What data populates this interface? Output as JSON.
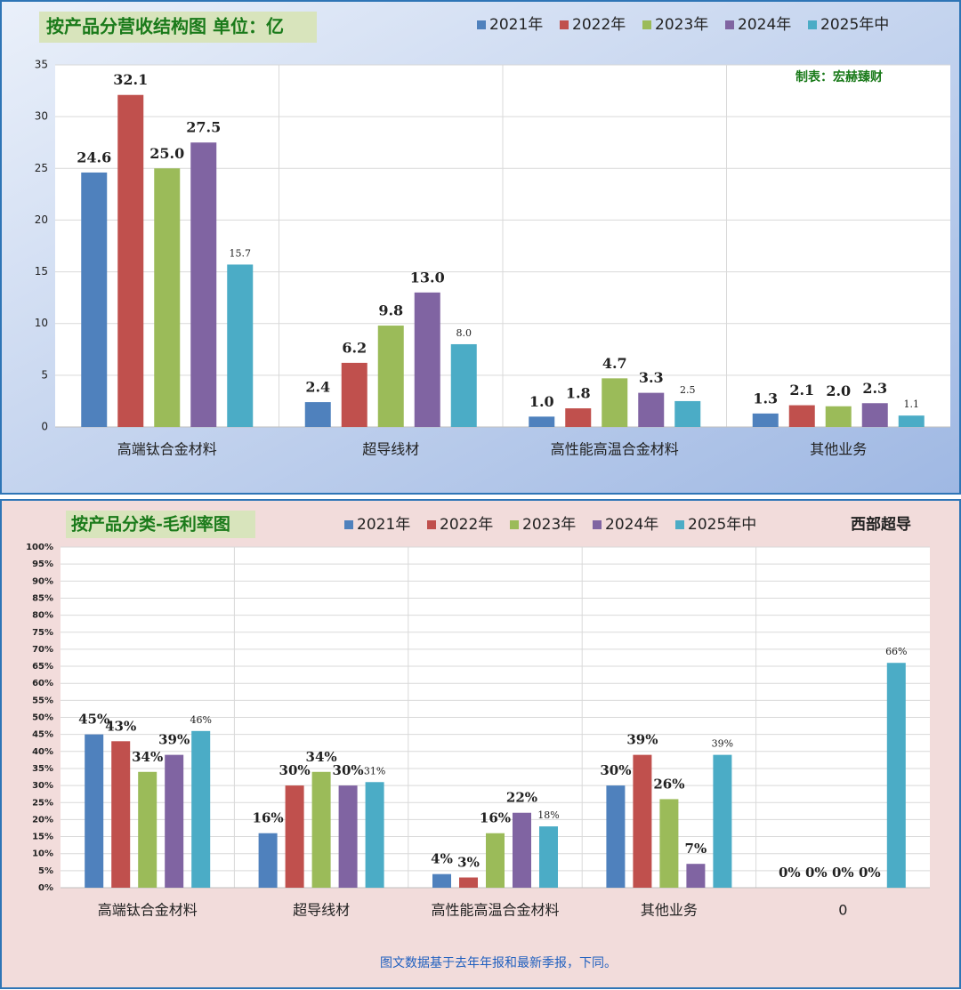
{
  "chart_data": [
    {
      "type": "bar",
      "title": "按产品分营收结构图 单位：亿",
      "annotation": "制表：宏赫臻财",
      "categories": [
        "高端钛合金材料",
        "超导线材",
        "高性能高温合金材料",
        "其他业务"
      ],
      "series": [
        {
          "name": "2021年",
          "color": "#4f81bd",
          "values": [
            24.6,
            2.4,
            1.0,
            1.3
          ],
          "value_labels": [
            "24.6",
            "2.4",
            "1.0",
            "1.3"
          ]
        },
        {
          "name": "2022年",
          "color": "#c0504d",
          "values": [
            32.1,
            6.2,
            1.8,
            2.1
          ],
          "value_labels": [
            "32.1",
            "6.2",
            "1.8",
            "2.1"
          ]
        },
        {
          "name": "2023年",
          "color": "#9bbb59",
          "values": [
            25.0,
            9.8,
            4.7,
            2.0
          ],
          "value_labels": [
            "25.0",
            "9.8",
            "4.7",
            "2.0"
          ]
        },
        {
          "name": "2024年",
          "color": "#8064a2",
          "values": [
            27.5,
            13.0,
            3.3,
            2.3
          ],
          "value_labels": [
            "27.5",
            "13.0",
            "3.3",
            "2.3"
          ]
        },
        {
          "name": "2025年中",
          "color": "#4bacc6",
          "values": [
            15.7,
            8.0,
            2.5,
            1.1
          ],
          "value_labels": [
            "15.7",
            "8.0",
            "2.5",
            "1.1"
          ]
        }
      ],
      "ylim": [
        0,
        35
      ],
      "yticks": [
        0,
        5,
        10,
        15,
        20,
        25,
        30,
        35
      ],
      "grid": true
    },
    {
      "type": "bar",
      "title": "按产品分类-毛利率图",
      "annotation": "西部超导",
      "footnote": "图文数据基于去年年报和最新季报，下同。",
      "categories": [
        "高端钛合金材料",
        "超导线材",
        "高性能高温合金材料",
        "其他业务",
        "0"
      ],
      "series": [
        {
          "name": "2021年",
          "color": "#4f81bd",
          "values": [
            45,
            16,
            4,
            30,
            0
          ],
          "value_labels": [
            "45%",
            "16%",
            "4%",
            "30%",
            "0%"
          ]
        },
        {
          "name": "2022年",
          "color": "#c0504d",
          "values": [
            43,
            30,
            3,
            39,
            0
          ],
          "value_labels": [
            "43%",
            "30%",
            "3%",
            "39%",
            "0%"
          ]
        },
        {
          "name": "2023年",
          "color": "#9bbb59",
          "values": [
            34,
            34,
            16,
            26,
            0
          ],
          "value_labels": [
            "34%",
            "34%",
            "16%",
            "26%",
            "0%"
          ]
        },
        {
          "name": "2024年",
          "color": "#8064a2",
          "values": [
            39,
            30,
            22,
            7,
            0
          ],
          "value_labels": [
            "39%",
            "30%",
            "22%",
            "7%",
            "0%"
          ]
        },
        {
          "name": "2025年中",
          "color": "#4bacc6",
          "values": [
            46,
            31,
            18,
            39,
            66
          ],
          "value_labels": [
            "46%",
            "31%",
            "18%",
            "39%",
            "66%"
          ]
        }
      ],
      "ylim": [
        0,
        100
      ],
      "yticks": [
        {
          "value": 0,
          "label": "0%"
        },
        {
          "value": 5,
          "label": "5%"
        },
        {
          "value": 10,
          "label": "10%"
        },
        {
          "value": 15,
          "label": "15%"
        },
        {
          "value": 20,
          "label": "20%"
        },
        {
          "value": 25,
          "label": "25%"
        },
        {
          "value": 30,
          "label": "30%"
        },
        {
          "value": 35,
          "label": "35%"
        },
        {
          "value": 40,
          "label": "40%"
        },
        {
          "value": 45,
          "label": "45%"
        },
        {
          "value": 50,
          "label": "50%"
        },
        {
          "value": 55,
          "label": "55%"
        },
        {
          "value": 60,
          "label": "60%"
        },
        {
          "value": 65,
          "label": "65%"
        },
        {
          "value": 70,
          "label": "70%"
        },
        {
          "value": 75,
          "label": "75%"
        },
        {
          "value": 80,
          "label": "80%"
        },
        {
          "value": 85,
          "label": "85%"
        },
        {
          "value": 90,
          "label": "90%"
        },
        {
          "value": 95,
          "label": "95%"
        },
        {
          "value": 100,
          "label": "100%"
        }
      ],
      "grid": true
    }
  ]
}
